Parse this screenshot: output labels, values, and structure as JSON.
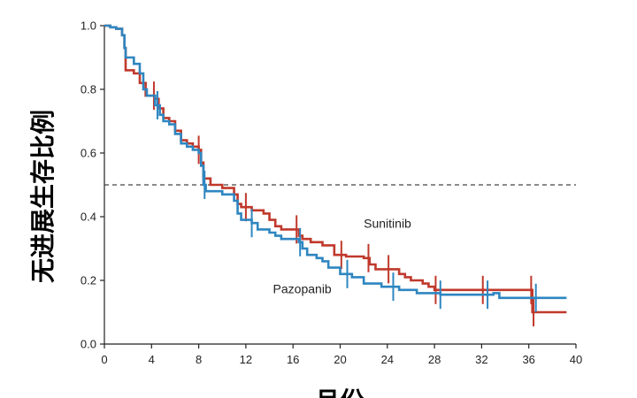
{
  "chart_data": {
    "type": "line",
    "title": "",
    "xlabel": "月份",
    "ylabel": "无进展生存比例",
    "xlim": [
      0,
      40
    ],
    "ylim": [
      0,
      1.0
    ],
    "x_ticks": [
      0,
      4,
      8,
      12,
      16,
      20,
      24,
      28,
      32,
      36,
      40
    ],
    "y_ticks": [
      0.0,
      0.2,
      0.4,
      0.6,
      0.8,
      1.0
    ],
    "y_tick_labels": [
      "0.0",
      "0.2",
      "0.4",
      "0.6",
      "0.8",
      "1.0"
    ],
    "reference_line": {
      "y": 0.5,
      "style": "dashed"
    },
    "grid": false,
    "legend": "none",
    "series": [
      {
        "name": "Sunitinib",
        "color": "#c0392b",
        "steps": [
          [
            0,
            1.0
          ],
          [
            0.5,
            0.995
          ],
          [
            1.0,
            0.99
          ],
          [
            1.5,
            0.97
          ],
          [
            1.7,
            0.93
          ],
          [
            1.8,
            0.86
          ],
          [
            2.5,
            0.85
          ],
          [
            3.0,
            0.82
          ],
          [
            3.5,
            0.78
          ],
          [
            4.3,
            0.77
          ],
          [
            4.6,
            0.74
          ],
          [
            5.0,
            0.71
          ],
          [
            5.5,
            0.7
          ],
          [
            6.0,
            0.67
          ],
          [
            6.5,
            0.64
          ],
          [
            7.0,
            0.63
          ],
          [
            7.5,
            0.62
          ],
          [
            8.0,
            0.61
          ],
          [
            8.2,
            0.57
          ],
          [
            8.4,
            0.52
          ],
          [
            9.0,
            0.5
          ],
          [
            10.0,
            0.49
          ],
          [
            11.0,
            0.47
          ],
          [
            11.3,
            0.44
          ],
          [
            11.6,
            0.43
          ],
          [
            12.5,
            0.42
          ],
          [
            13.5,
            0.41
          ],
          [
            14.0,
            0.39
          ],
          [
            14.5,
            0.37
          ],
          [
            15.0,
            0.36
          ],
          [
            16.5,
            0.34
          ],
          [
            16.8,
            0.33
          ],
          [
            17.5,
            0.32
          ],
          [
            18.5,
            0.31
          ],
          [
            19.5,
            0.28
          ],
          [
            20.5,
            0.275
          ],
          [
            22.0,
            0.27
          ],
          [
            22.5,
            0.25
          ],
          [
            23.0,
            0.235
          ],
          [
            25.0,
            0.22
          ],
          [
            25.5,
            0.21
          ],
          [
            26.0,
            0.2
          ],
          [
            27.0,
            0.19
          ],
          [
            27.5,
            0.18
          ],
          [
            28.0,
            0.17
          ],
          [
            36.3,
            0.1
          ],
          [
            39.2,
            0.1
          ]
        ],
        "censor_x": [
          4.2,
          8.0,
          12.0,
          16.3,
          20.1,
          22.4,
          24.1,
          28.1,
          32.1,
          36.2,
          36.4
        ]
      },
      {
        "name": "Pazopanib",
        "color": "#2e86c1",
        "steps": [
          [
            0,
            1.0
          ],
          [
            0.5,
            0.995
          ],
          [
            1.0,
            0.99
          ],
          [
            1.5,
            0.97
          ],
          [
            1.7,
            0.93
          ],
          [
            1.8,
            0.9
          ],
          [
            2.5,
            0.88
          ],
          [
            3.0,
            0.85
          ],
          [
            3.3,
            0.8
          ],
          [
            3.6,
            0.78
          ],
          [
            4.3,
            0.75
          ],
          [
            4.7,
            0.72
          ],
          [
            5.0,
            0.7
          ],
          [
            5.5,
            0.69
          ],
          [
            6.0,
            0.66
          ],
          [
            6.5,
            0.63
          ],
          [
            7.0,
            0.62
          ],
          [
            7.5,
            0.61
          ],
          [
            8.0,
            0.6
          ],
          [
            8.2,
            0.56
          ],
          [
            8.4,
            0.5
          ],
          [
            8.6,
            0.48
          ],
          [
            10.0,
            0.47
          ],
          [
            11.0,
            0.45
          ],
          [
            11.3,
            0.41
          ],
          [
            11.6,
            0.39
          ],
          [
            12.5,
            0.38
          ],
          [
            13.0,
            0.36
          ],
          [
            14.0,
            0.35
          ],
          [
            14.5,
            0.34
          ],
          [
            15.0,
            0.33
          ],
          [
            16.5,
            0.32
          ],
          [
            16.8,
            0.3
          ],
          [
            17.2,
            0.28
          ],
          [
            18.0,
            0.27
          ],
          [
            18.5,
            0.26
          ],
          [
            19.0,
            0.24
          ],
          [
            20.0,
            0.22
          ],
          [
            21.0,
            0.21
          ],
          [
            22.0,
            0.19
          ],
          [
            23.5,
            0.18
          ],
          [
            25.0,
            0.17
          ],
          [
            26.5,
            0.16
          ],
          [
            28.5,
            0.155
          ],
          [
            33.0,
            0.16
          ],
          [
            33.5,
            0.145
          ],
          [
            39.2,
            0.145
          ]
        ],
        "censor_x": [
          4.5,
          8.5,
          12.5,
          16.6,
          20.6,
          24.5,
          28.5,
          32.5,
          36.6
        ]
      }
    ],
    "annotations": [
      {
        "text": "Sunitinib",
        "x": 22.0,
        "y": 0.365
      },
      {
        "text": "Pazopanib",
        "x": 14.3,
        "y": 0.16
      }
    ]
  }
}
